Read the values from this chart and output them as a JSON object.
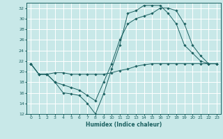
{
  "xlabel": "Humidex (Indice chaleur)",
  "bg_color": "#c8e8e8",
  "grid_color": "#ffffff",
  "line_color": "#1a6060",
  "xlim": [
    -0.5,
    23.5
  ],
  "ylim": [
    12,
    33
  ],
  "xticks": [
    0,
    1,
    2,
    3,
    4,
    5,
    6,
    7,
    8,
    9,
    10,
    11,
    12,
    13,
    14,
    15,
    16,
    17,
    18,
    19,
    20,
    21,
    22,
    23
  ],
  "yticks": [
    12,
    14,
    16,
    18,
    20,
    22,
    24,
    26,
    28,
    30,
    32
  ],
  "series1_x": [
    0,
    1,
    2,
    3,
    4,
    5,
    6,
    7,
    8,
    9,
    10,
    11,
    12,
    13,
    14,
    15,
    16,
    17,
    18,
    19,
    20,
    21,
    22,
    23
  ],
  "series1_y": [
    21.5,
    19.5,
    19.5,
    19.8,
    19.8,
    19.5,
    19.5,
    19.5,
    19.5,
    19.5,
    19.8,
    20.2,
    20.5,
    21.0,
    21.3,
    21.5,
    21.5,
    21.5,
    21.5,
    21.5,
    21.5,
    21.5,
    21.5,
    21.5
  ],
  "series2_x": [
    0,
    1,
    2,
    3,
    4,
    5,
    6,
    7,
    8,
    9,
    10,
    11,
    12,
    13,
    14,
    15,
    16,
    17,
    18,
    19,
    20,
    21,
    22,
    23
  ],
  "series2_y": [
    21.5,
    19.5,
    19.5,
    18.0,
    16.0,
    15.8,
    15.5,
    14.0,
    12.0,
    15.8,
    20.5,
    25.0,
    31.0,
    31.5,
    32.5,
    32.5,
    32.5,
    31.0,
    29.0,
    25.0,
    23.5,
    22.0,
    21.5,
    21.5
  ],
  "series3_x": [
    0,
    1,
    2,
    3,
    4,
    5,
    6,
    7,
    8,
    9,
    10,
    11,
    12,
    13,
    14,
    15,
    16,
    17,
    18,
    19,
    20,
    21,
    22,
    23
  ],
  "series3_y": [
    21.5,
    19.5,
    19.5,
    18.0,
    17.5,
    17.0,
    16.5,
    15.5,
    14.5,
    18.0,
    21.5,
    26.0,
    29.0,
    30.0,
    30.5,
    31.0,
    32.0,
    32.0,
    31.5,
    29.0,
    25.0,
    23.0,
    21.5,
    21.5
  ]
}
